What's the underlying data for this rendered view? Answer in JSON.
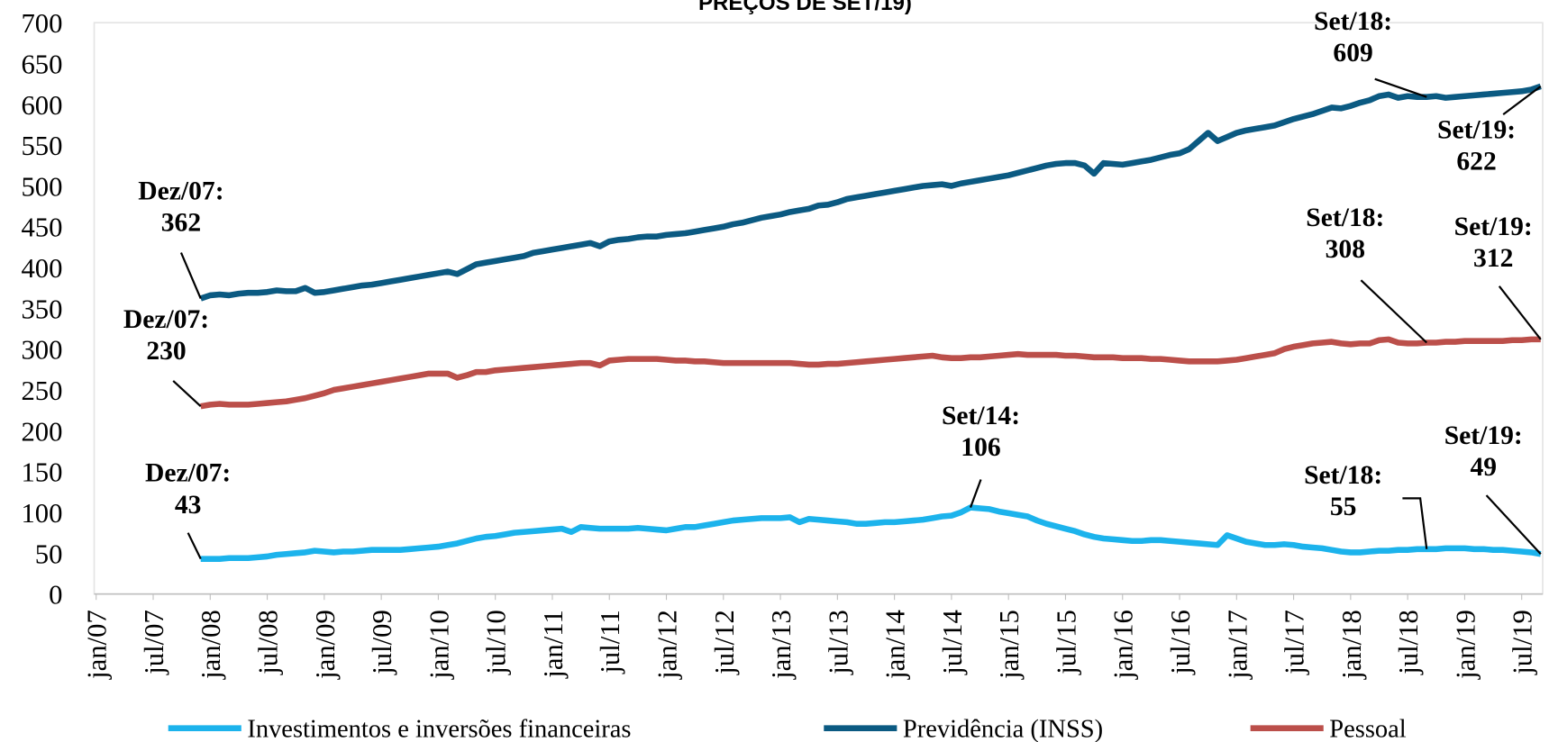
{
  "chart_data": {
    "type": "line",
    "title": "PREÇOS DE SET/19)",
    "categories": [
      "jan/07",
      null,
      null,
      null,
      null,
      null,
      "jul/07",
      null,
      null,
      null,
      null,
      null,
      "jan/08",
      null,
      null,
      null,
      null,
      null,
      "jul/08",
      null,
      null,
      null,
      null,
      null,
      "jan/09",
      null,
      null,
      null,
      null,
      null,
      "jul/09",
      null,
      null,
      null,
      null,
      null,
      "jan/10",
      null,
      null,
      null,
      null,
      null,
      "jul/10",
      null,
      null,
      null,
      null,
      null,
      "jan/11",
      null,
      null,
      null,
      null,
      null,
      "jul/11",
      null,
      null,
      null,
      null,
      null,
      "jan/12",
      null,
      null,
      null,
      null,
      null,
      "jul/12",
      null,
      null,
      null,
      null,
      null,
      "jan/13",
      null,
      null,
      null,
      null,
      null,
      "jul/13",
      null,
      null,
      null,
      null,
      null,
      "jan/14",
      null,
      null,
      null,
      null,
      null,
      "jul/14",
      null,
      null,
      null,
      null,
      null,
      "jan/15",
      null,
      null,
      null,
      null,
      null,
      "jul/15",
      null,
      null,
      null,
      null,
      null,
      "jan/16",
      null,
      null,
      null,
      null,
      null,
      "jul/16",
      null,
      null,
      null,
      null,
      null,
      "jan/17",
      null,
      null,
      null,
      null,
      null,
      "jul/17",
      null,
      null,
      null,
      null,
      null,
      "jan/18",
      null,
      null,
      null,
      null,
      null,
      "jul/18",
      null,
      null,
      null,
      null,
      null,
      "jan/19",
      null,
      null,
      null,
      null,
      null,
      "jul/19",
      null,
      null
    ],
    "series": [
      {
        "name": "Investimentos e inversões financeiras",
        "color": "#1cb3ec",
        "values": [
          null,
          null,
          null,
          null,
          null,
          null,
          null,
          null,
          null,
          null,
          null,
          43,
          43,
          43,
          44,
          44,
          44,
          45,
          46,
          48,
          49,
          50,
          51,
          53,
          52,
          51,
          52,
          52,
          53,
          54,
          54,
          54,
          54,
          55,
          56,
          57,
          58,
          60,
          62,
          65,
          68,
          70,
          71,
          73,
          75,
          76,
          77,
          78,
          79,
          80,
          76,
          82,
          81,
          80,
          80,
          80,
          80,
          81,
          80,
          79,
          78,
          80,
          82,
          82,
          84,
          86,
          88,
          90,
          91,
          92,
          93,
          93,
          93,
          94,
          88,
          92,
          91,
          90,
          89,
          88,
          86,
          86,
          87,
          88,
          88,
          89,
          90,
          91,
          93,
          95,
          96,
          100,
          106,
          105,
          104,
          101,
          99,
          97,
          95,
          90,
          86,
          83,
          80,
          77,
          73,
          70,
          68,
          67,
          66,
          65,
          65,
          66,
          66,
          65,
          64,
          63,
          62,
          61,
          60,
          72,
          68,
          64,
          62,
          60,
          60,
          61,
          60,
          58,
          57,
          56,
          54,
          52,
          51,
          51,
          52,
          53,
          53,
          54,
          54,
          55,
          55,
          55,
          56,
          56,
          56,
          55,
          55,
          54,
          54,
          53,
          52,
          51,
          49
        ]
      },
      {
        "name": "Previdência (INSS)",
        "color": "#0b5a82",
        "values": [
          null,
          null,
          null,
          null,
          null,
          null,
          null,
          null,
          null,
          null,
          null,
          362,
          366,
          367,
          366,
          368,
          369,
          369,
          370,
          372,
          371,
          371,
          375,
          369,
          370,
          372,
          374,
          376,
          378,
          379,
          381,
          383,
          385,
          387,
          389,
          391,
          393,
          395,
          392,
          398,
          404,
          406,
          408,
          410,
          412,
          414,
          418,
          420,
          422,
          424,
          426,
          428,
          430,
          426,
          432,
          434,
          435,
          437,
          438,
          438,
          440,
          441,
          442,
          444,
          446,
          448,
          450,
          453,
          455,
          458,
          461,
          463,
          465,
          468,
          470,
          472,
          476,
          477,
          480,
          484,
          486,
          488,
          490,
          492,
          494,
          496,
          498,
          500,
          501,
          502,
          500,
          503,
          505,
          507,
          509,
          511,
          513,
          516,
          519,
          522,
          525,
          527,
          528,
          528,
          525,
          515,
          528,
          527,
          526,
          528,
          530,
          532,
          535,
          538,
          540,
          545,
          555,
          565,
          555,
          560,
          565,
          568,
          570,
          572,
          574,
          578,
          582,
          585,
          588,
          592,
          596,
          595,
          598,
          602,
          605,
          610,
          612,
          608,
          610,
          609,
          609,
          610,
          608,
          609,
          610,
          611,
          612,
          613,
          614,
          615,
          616,
          618,
          622
        ]
      },
      {
        "name": "Pessoal",
        "color": "#bb4f4a",
        "values": [
          null,
          null,
          null,
          null,
          null,
          null,
          null,
          null,
          null,
          null,
          null,
          230,
          232,
          233,
          232,
          232,
          232,
          233,
          234,
          235,
          236,
          238,
          240,
          243,
          246,
          250,
          252,
          254,
          256,
          258,
          260,
          262,
          264,
          266,
          268,
          270,
          270,
          270,
          265,
          268,
          272,
          272,
          274,
          275,
          276,
          277,
          278,
          279,
          280,
          281,
          282,
          283,
          283,
          280,
          286,
          287,
          288,
          288,
          288,
          288,
          287,
          286,
          286,
          285,
          285,
          284,
          283,
          283,
          283,
          283,
          283,
          283,
          283,
          283,
          282,
          281,
          281,
          282,
          282,
          283,
          284,
          285,
          286,
          287,
          288,
          289,
          290,
          291,
          292,
          290,
          289,
          289,
          290,
          290,
          291,
          292,
          293,
          294,
          293,
          293,
          293,
          293,
          292,
          292,
          291,
          290,
          290,
          290,
          289,
          289,
          289,
          288,
          288,
          287,
          286,
          285,
          285,
          285,
          285,
          286,
          287,
          289,
          291,
          293,
          295,
          300,
          303,
          305,
          307,
          308,
          309,
          307,
          306,
          307,
          307,
          311,
          312,
          308,
          307,
          307,
          308,
          308,
          309,
          309,
          310,
          310,
          310,
          310,
          310,
          311,
          311,
          312,
          312
        ]
      }
    ],
    "annotations": [
      {
        "series": 1,
        "label": "Dez/07:",
        "value": 362
      },
      {
        "series": 1,
        "label": "Set/18:",
        "value": 609
      },
      {
        "series": 1,
        "label": "Set/19:",
        "value": 622
      },
      {
        "series": 2,
        "label": "Dez/07:",
        "value": 230
      },
      {
        "series": 2,
        "label": "Set/18:",
        "value": 308
      },
      {
        "series": 2,
        "label": "Set/19:",
        "value": 312
      },
      {
        "series": 0,
        "label": "Dez/07:",
        "value": 43
      },
      {
        "series": 0,
        "label": "Set/14:",
        "value": 106
      },
      {
        "series": 0,
        "label": "Set/18:",
        "value": 55
      },
      {
        "series": 0,
        "label": "Set/19:",
        "value": 49
      }
    ],
    "ylim": [
      0,
      700
    ],
    "yticks": [
      0,
      50,
      100,
      150,
      200,
      250,
      300,
      350,
      400,
      450,
      500,
      550,
      600,
      650,
      700
    ],
    "grid": false,
    "legend": "bottom"
  }
}
